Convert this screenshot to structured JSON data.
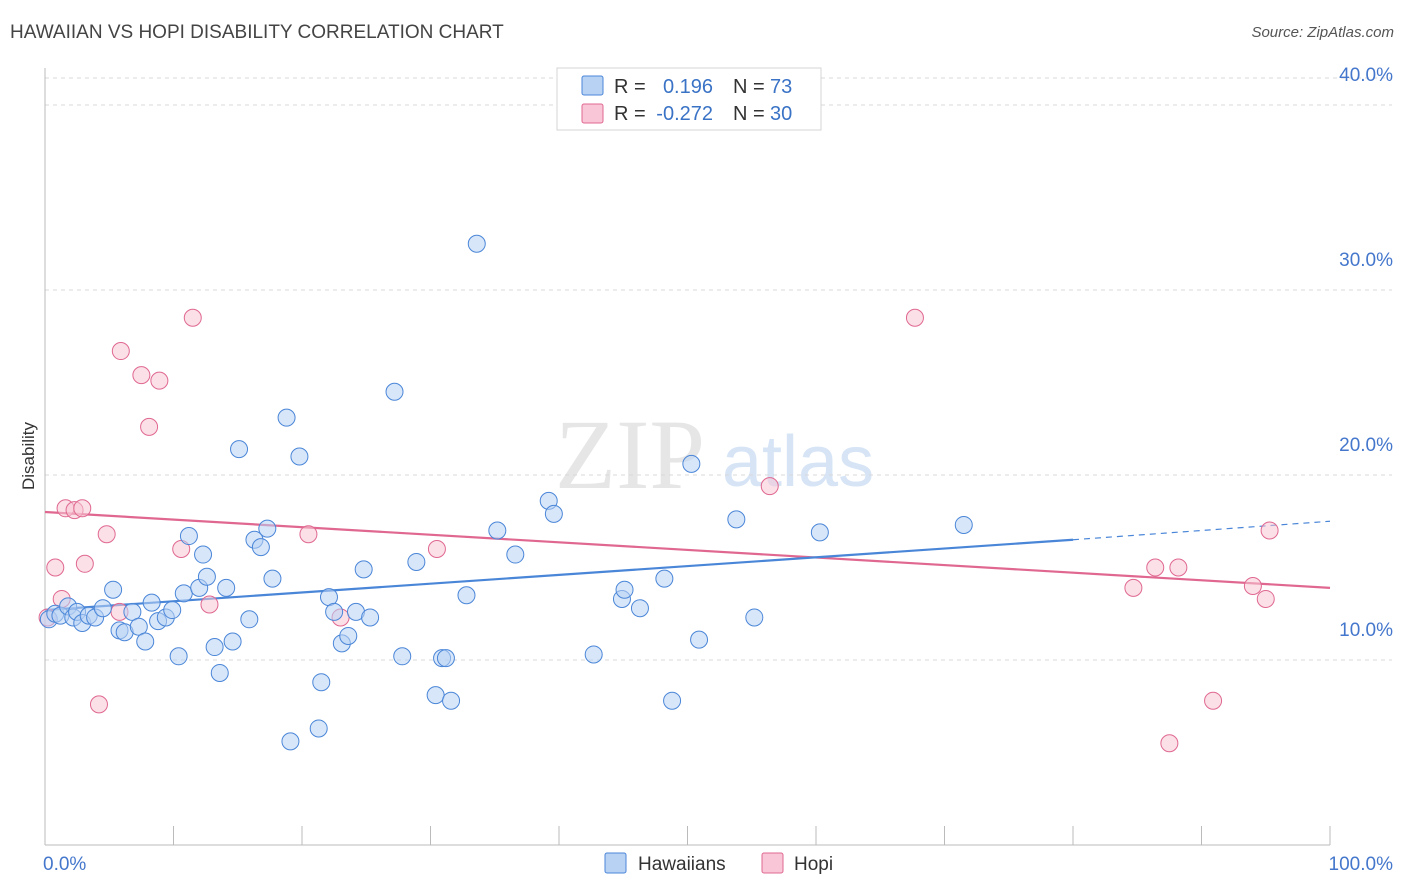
{
  "title": "HAWAIIAN VS HOPI DISABILITY CORRELATION CHART",
  "source": "Source: ZipAtlas.com",
  "watermark": {
    "zip": "ZIP",
    "atlas": "atlas"
  },
  "colors": {
    "blue": "#4a86d8",
    "blue_fill": "#b8d2f4",
    "pink": "#e06890",
    "pink_fill": "#f8c6d6",
    "tick": "#4477cc",
    "grid": "#d8d8d8"
  },
  "legend": {
    "rows": [
      {
        "r_label": "R =",
        "r_value": "0.196",
        "n_label": "N =",
        "n_value": "73",
        "series": "Hawaiians"
      },
      {
        "r_label": "R =",
        "r_value": "-0.272",
        "n_label": "N =",
        "n_value": "30",
        "series": "Hopi"
      }
    ]
  },
  "chart_data": {
    "type": "scatter",
    "title": "HAWAIIAN VS HOPI DISABILITY CORRELATION CHART",
    "xlabel": "",
    "ylabel": "Disability",
    "xlim": [
      0,
      100
    ],
    "ylim": [
      0,
      42
    ],
    "x_tick_labels": [
      "0.0%",
      "100.0%"
    ],
    "y_ticks": [
      10,
      20,
      30,
      40
    ],
    "y_tick_labels": [
      "10.0%",
      "20.0%",
      "30.0%",
      "40.0%"
    ],
    "grid": true,
    "legend_position": "bottom-center",
    "series": [
      {
        "name": "Hawaiians",
        "color": "#4a86d8",
        "trend": {
          "x_start": 0,
          "y_start": 12.7,
          "x_end": 80,
          "y_end": 16.5,
          "dashed_to_x": 100,
          "dashed_to_y": 17.5
        },
        "points": [
          [
            0.3,
            12.2
          ],
          [
            0.8,
            12.5
          ],
          [
            1.2,
            12.4
          ],
          [
            1.8,
            12.9
          ],
          [
            2.2,
            12.3
          ],
          [
            2.5,
            12.6
          ],
          [
            2.9,
            12.0
          ],
          [
            3.4,
            12.4
          ],
          [
            3.9,
            12.3
          ],
          [
            4.5,
            12.8
          ],
          [
            5.3,
            13.8
          ],
          [
            5.8,
            11.6
          ],
          [
            6.2,
            11.5
          ],
          [
            6.8,
            12.6
          ],
          [
            7.3,
            11.8
          ],
          [
            7.8,
            11.0
          ],
          [
            8.3,
            13.1
          ],
          [
            8.8,
            12.1
          ],
          [
            9.4,
            12.3
          ],
          [
            9.9,
            12.7
          ],
          [
            10.4,
            10.2
          ],
          [
            10.8,
            13.6
          ],
          [
            11.2,
            16.7
          ],
          [
            12.0,
            13.9
          ],
          [
            12.3,
            15.7
          ],
          [
            12.6,
            14.5
          ],
          [
            13.2,
            10.7
          ],
          [
            13.6,
            9.3
          ],
          [
            14.1,
            13.9
          ],
          [
            14.6,
            11.0
          ],
          [
            15.1,
            21.4
          ],
          [
            15.9,
            12.2
          ],
          [
            16.3,
            16.5
          ],
          [
            16.8,
            16.1
          ],
          [
            17.3,
            17.1
          ],
          [
            17.7,
            14.4
          ],
          [
            18.8,
            23.1
          ],
          [
            19.1,
            5.6
          ],
          [
            19.8,
            21.0
          ],
          [
            21.3,
            6.3
          ],
          [
            21.5,
            8.8
          ],
          [
            22.1,
            13.4
          ],
          [
            22.5,
            12.6
          ],
          [
            23.1,
            10.9
          ],
          [
            23.6,
            11.3
          ],
          [
            24.2,
            12.6
          ],
          [
            24.8,
            14.9
          ],
          [
            25.3,
            12.3
          ],
          [
            27.2,
            24.5
          ],
          [
            27.8,
            10.2
          ],
          [
            28.9,
            15.3
          ],
          [
            30.4,
            8.1
          ],
          [
            30.9,
            10.1
          ],
          [
            31.2,
            10.1
          ],
          [
            31.6,
            7.8
          ],
          [
            32.8,
            13.5
          ],
          [
            33.6,
            32.5
          ],
          [
            35.2,
            17.0
          ],
          [
            36.6,
            15.7
          ],
          [
            39.2,
            18.6
          ],
          [
            39.6,
            17.9
          ],
          [
            42.7,
            10.3
          ],
          [
            44.9,
            13.3
          ],
          [
            45.1,
            13.8
          ],
          [
            46.3,
            12.8
          ],
          [
            48.2,
            14.4
          ],
          [
            48.8,
            7.8
          ],
          [
            50.3,
            20.6
          ],
          [
            50.9,
            11.1
          ],
          [
            53.8,
            17.6
          ],
          [
            55.2,
            12.3
          ],
          [
            60.3,
            16.9
          ],
          [
            71.5,
            17.3
          ]
        ]
      },
      {
        "name": "Hopi",
        "color": "#e06890",
        "trend": {
          "x_start": 0,
          "y_start": 18.0,
          "x_end": 100,
          "y_end": 13.9
        },
        "points": [
          [
            0.8,
            15.0
          ],
          [
            1.3,
            13.3
          ],
          [
            1.6,
            18.2
          ],
          [
            2.3,
            18.1
          ],
          [
            2.9,
            18.2
          ],
          [
            3.1,
            15.2
          ],
          [
            4.2,
            7.6
          ],
          [
            4.8,
            16.8
          ],
          [
            5.8,
            12.6
          ],
          [
            5.9,
            26.7
          ],
          [
            7.5,
            25.4
          ],
          [
            8.1,
            22.6
          ],
          [
            8.9,
            25.1
          ],
          [
            10.6,
            16.0
          ],
          [
            11.5,
            28.5
          ],
          [
            12.8,
            13.0
          ],
          [
            20.5,
            16.8
          ],
          [
            23.0,
            12.3
          ],
          [
            30.5,
            16.0
          ],
          [
            56.4,
            19.4
          ],
          [
            67.7,
            28.5
          ],
          [
            84.7,
            13.9
          ],
          [
            86.4,
            15.0
          ],
          [
            87.5,
            5.5
          ],
          [
            88.2,
            15.0
          ],
          [
            90.9,
            7.8
          ],
          [
            94.0,
            14.0
          ],
          [
            95.0,
            13.3
          ],
          [
            95.3,
            17.0
          ],
          [
            0.2,
            12.3
          ]
        ]
      }
    ]
  }
}
